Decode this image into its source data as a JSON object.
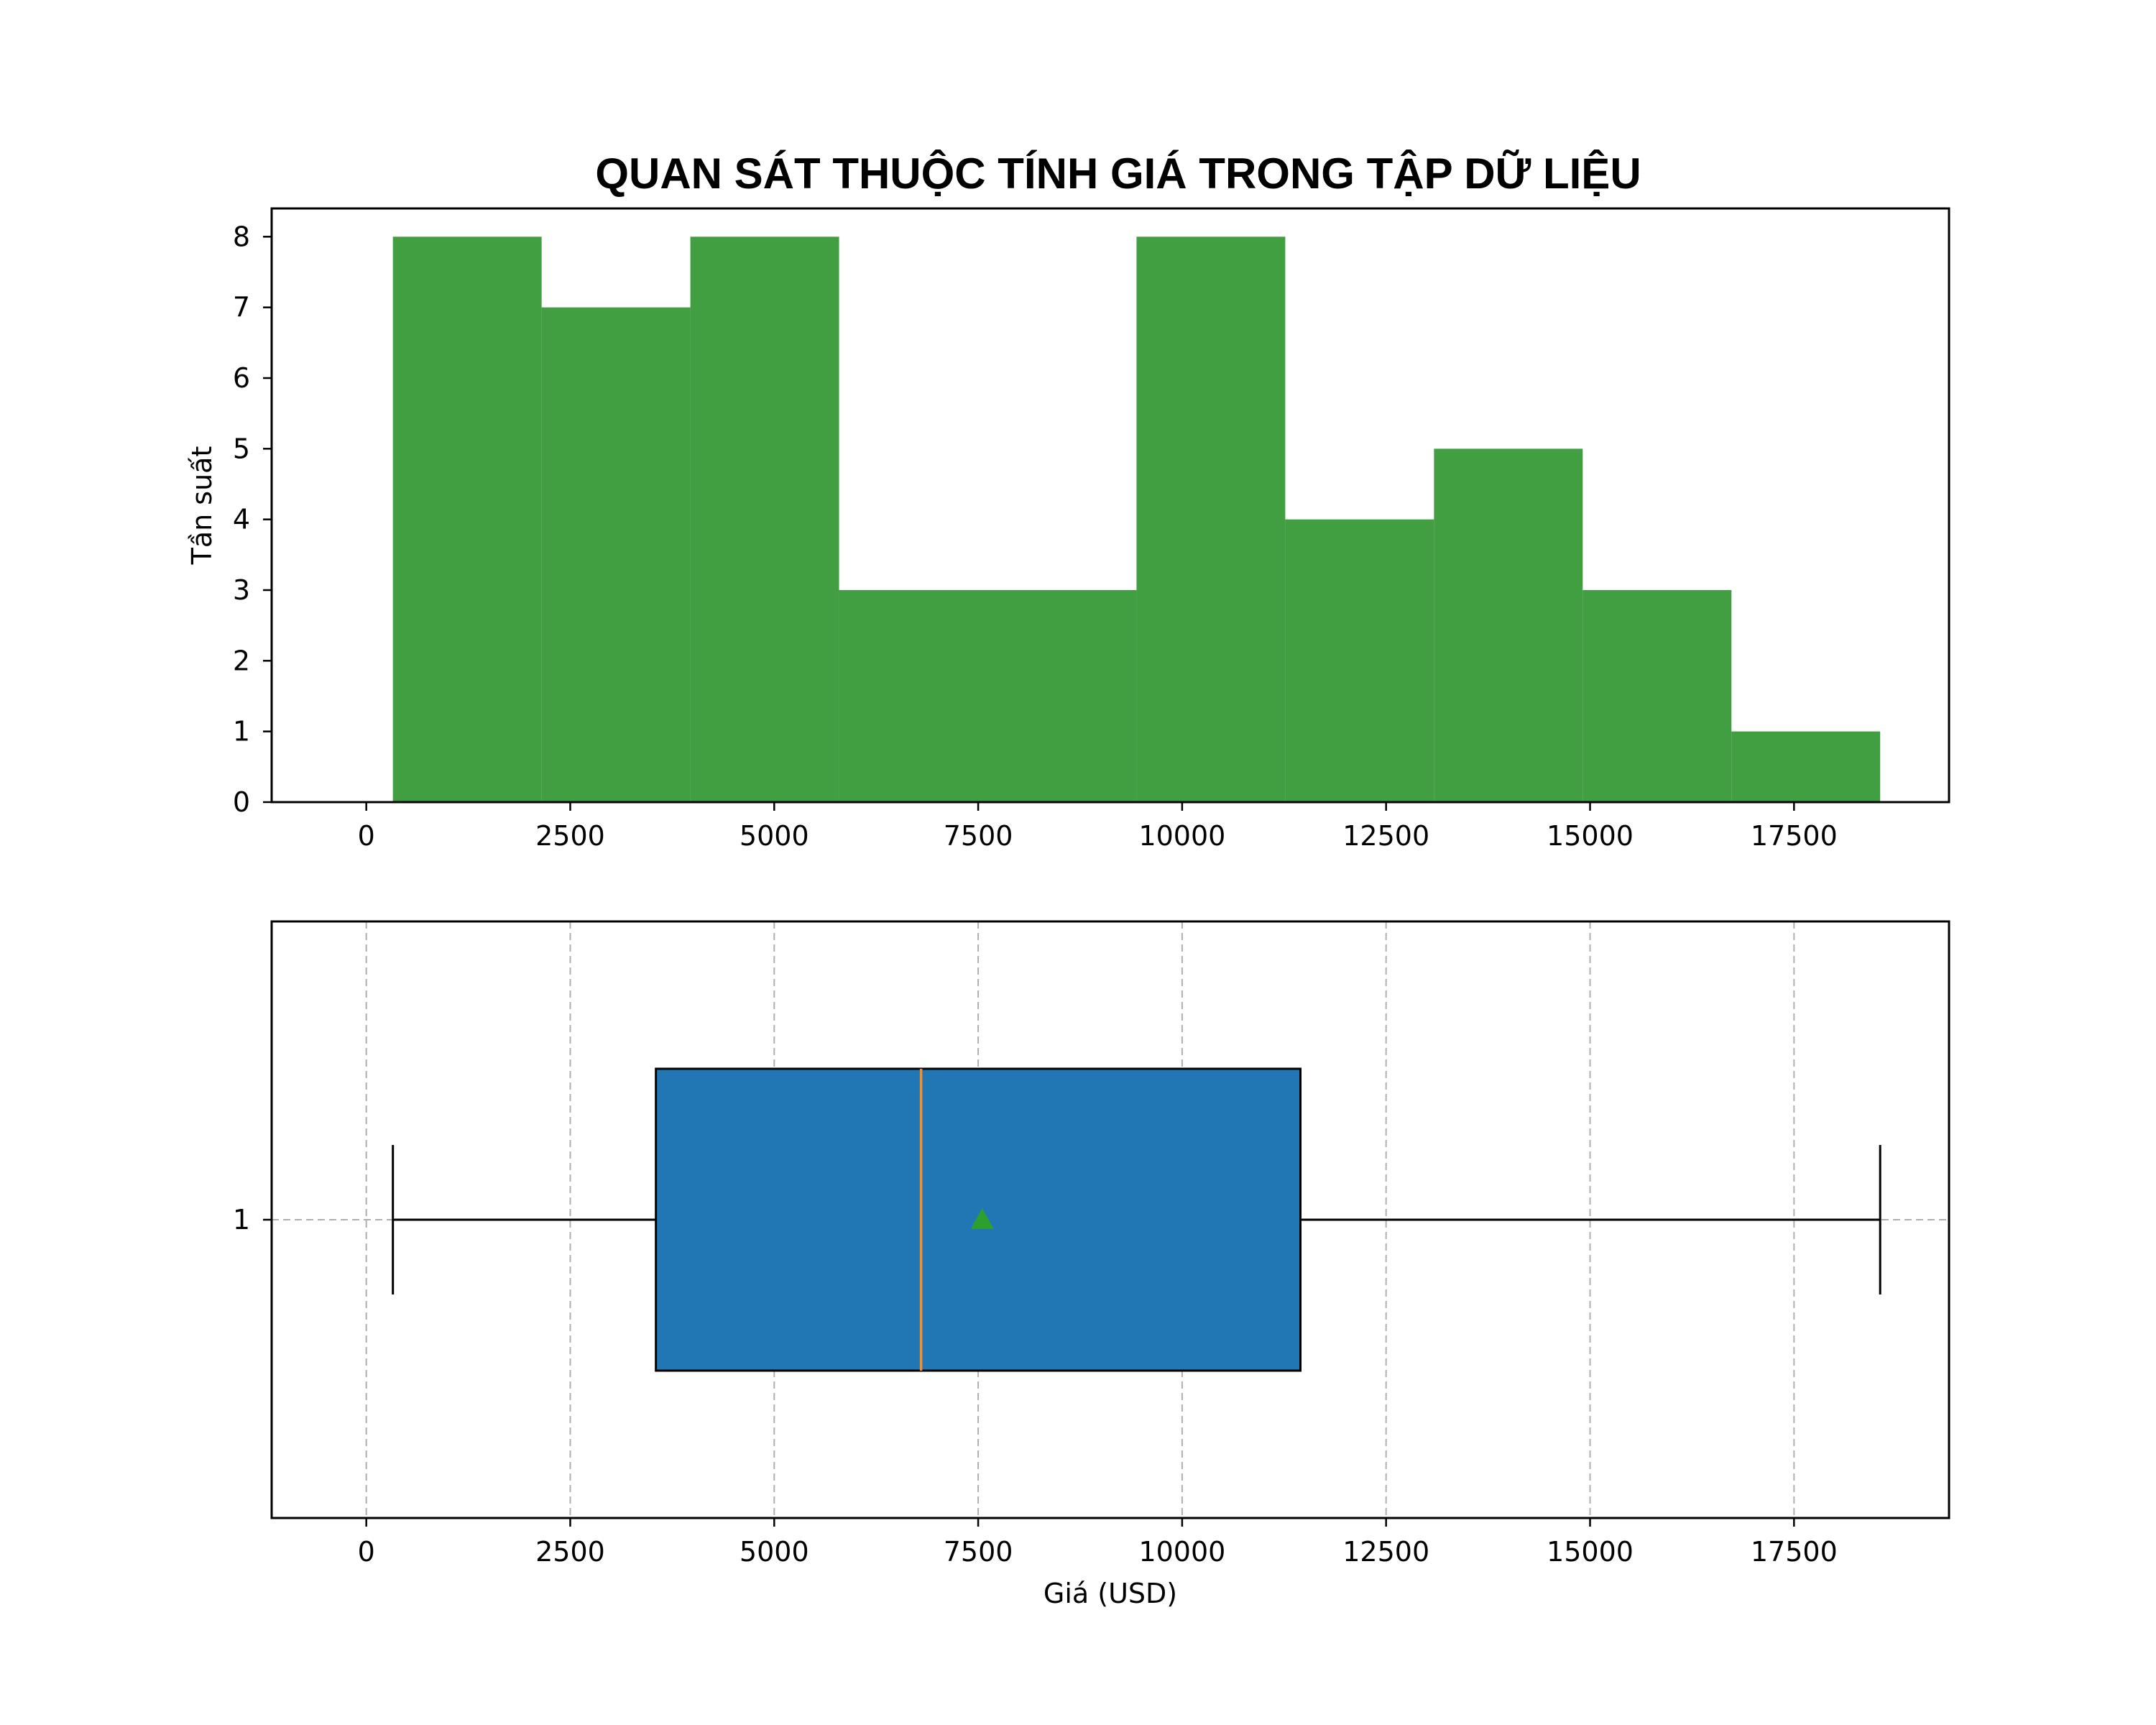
{
  "chart_data": [
    {
      "type": "bar",
      "subtype": "histogram",
      "title": "QUAN SÁT THUỘC TÍNH GIÁ TRONG TẬP DỮ LIỆU",
      "ylabel": "Tần suất",
      "xlabel": "",
      "bin_edges": [
        326,
        2149,
        3972,
        5795,
        7618,
        9441,
        11264,
        13087,
        14910,
        16733,
        18556
      ],
      "values": [
        8,
        7,
        8,
        3,
        3,
        8,
        4,
        5,
        3,
        1
      ],
      "xlim": [
        -1160,
        19400
      ],
      "ylim": [
        0,
        8.4
      ],
      "xticks": [
        0,
        2500,
        5000,
        7500,
        10000,
        12500,
        15000,
        17500
      ],
      "xtick_labels": [
        "0",
        "2500",
        "5000",
        "7500",
        "10000",
        "12500",
        "15000",
        "17500"
      ],
      "yticks": [
        0,
        1,
        2,
        3,
        4,
        5,
        6,
        7,
        8
      ],
      "ytick_labels": [
        "0",
        "1",
        "2",
        "3",
        "4",
        "5",
        "6",
        "7",
        "8"
      ],
      "color": "#419f42",
      "grid": false
    },
    {
      "type": "box",
      "orientation": "horizontal",
      "xlabel": "Giá (USD)",
      "ylabel": "",
      "category_label": "1",
      "whisker_low": 326,
      "q1": 3550,
      "median": 6800,
      "mean": 7550,
      "q3": 11450,
      "whisker_high": 18556,
      "xlim": [
        -1160,
        19400
      ],
      "xticks": [
        0,
        2500,
        5000,
        7500,
        10000,
        12500,
        15000,
        17500
      ],
      "xtick_labels": [
        "0",
        "2500",
        "5000",
        "7500",
        "10000",
        "12500",
        "15000",
        "17500"
      ],
      "box_color": "#2077b4",
      "median_color": "#f28e2b",
      "mean_color": "#2ca02c",
      "grid": true
    }
  ]
}
